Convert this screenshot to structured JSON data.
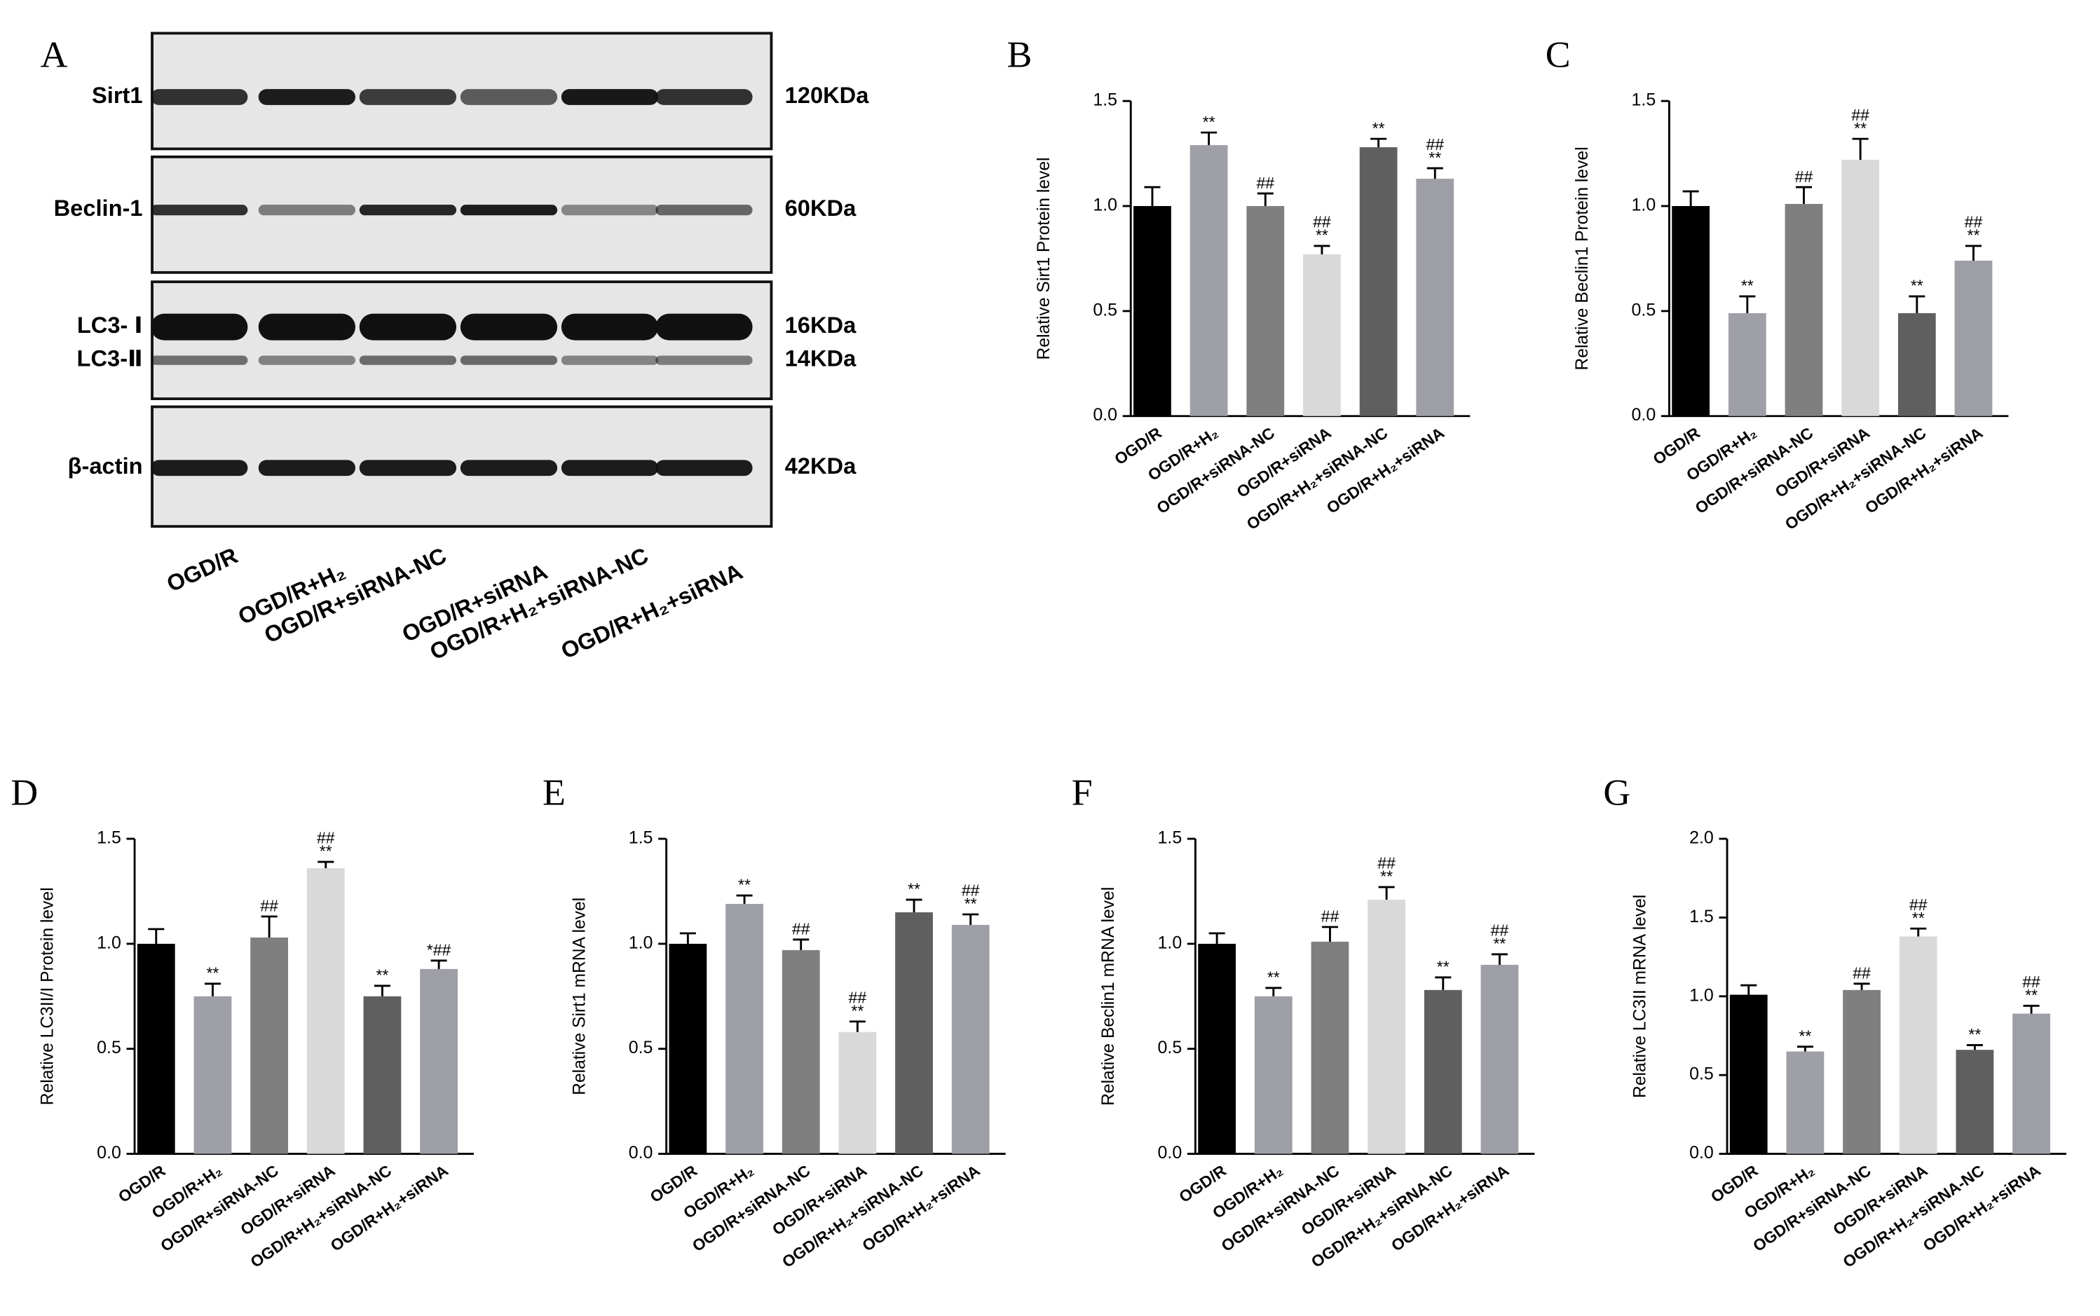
{
  "blot": {
    "label": "A",
    "rows": [
      {
        "names": [
          "Sirt1"
        ],
        "markers": [
          "120KDa"
        ]
      },
      {
        "names": [
          "Beclin-1"
        ],
        "markers": [
          "60KDa"
        ]
      },
      {
        "names": [
          "LC3- Ⅰ",
          "LC3-Ⅱ"
        ],
        "markers": [
          "16KDa",
          "14KDa"
        ]
      },
      {
        "names": [
          "β-actin"
        ],
        "markers": [
          "42KDa"
        ]
      }
    ],
    "lanes": [
      "OGD/R",
      "OGD/R+H₂",
      "OGD/R+siRNA-NC",
      "OGD/R+siRNA",
      "OGD/R+H₂+siRNA-NC",
      "OGD/R+H₂+siRNA"
    ]
  },
  "chart_data": [
    {
      "type": "bar",
      "panel": "B",
      "ylabel": "Relative Sirt1 Protein level",
      "categories": [
        "OGD/R",
        "OGD/R+H₂",
        "OGD/R+siRNA-NC",
        "OGD/R+siRNA",
        "OGD/R+H₂+siRNA-NC",
        "OGD/R+H₂+siRNA"
      ],
      "values": [
        1.0,
        1.29,
        1.0,
        0.77,
        1.28,
        1.13
      ],
      "errors": [
        0.09,
        0.06,
        0.06,
        0.04,
        0.04,
        0.05
      ],
      "annotations": [
        [],
        [
          "**"
        ],
        [
          "##"
        ],
        [
          "##",
          "**"
        ],
        [
          "**"
        ],
        [
          "##",
          "**"
        ]
      ],
      "colors": [
        "#000000",
        "#9f9fa7",
        "#7f7f7f",
        "#d9d9d9",
        "#5f5f5f",
        "#9e9ea6"
      ],
      "ylim": [
        0,
        1.5
      ],
      "yticks": [
        {
          "value": 0,
          "label": "0.0"
        },
        0.5,
        {
          "value": 1,
          "label": "1.0"
        },
        1.5
      ]
    },
    {
      "type": "bar",
      "panel": "C",
      "ylabel": "Relative Beclin1 Protein level",
      "categories": [
        "OGD/R",
        "OGD/R+H₂",
        "OGD/R+siRNA-NC",
        "OGD/R+siRNA",
        "OGD/R+H₂+siRNA-NC",
        "OGD/R+H₂+siRNA"
      ],
      "values": [
        1.0,
        0.49,
        1.01,
        1.22,
        0.49,
        0.74
      ],
      "errors": [
        0.07,
        0.08,
        0.08,
        0.1,
        0.08,
        0.07
      ],
      "annotations": [
        [],
        [
          "**"
        ],
        [
          "##"
        ],
        [
          "##",
          "**"
        ],
        [
          "**"
        ],
        [
          "##",
          "**"
        ]
      ],
      "colors": [
        "#000000",
        "#9f9fa7",
        "#7f7f7f",
        "#d9d9d9",
        "#5f5f5f",
        "#9e9ea6"
      ],
      "ylim": [
        0,
        1.5
      ],
      "yticks": [
        {
          "value": 0,
          "label": "0.0"
        },
        0.5,
        {
          "value": 1,
          "label": "1.0"
        },
        1.5
      ]
    },
    {
      "type": "bar",
      "panel": "D",
      "ylabel": "Relative LC3II/I Protein level",
      "categories": [
        "OGD/R",
        "OGD/R+H₂",
        "OGD/R+siRNA-NC",
        "OGD/R+siRNA",
        "OGD/R+H₂+siRNA-NC",
        "OGD/R+H₂+siRNA"
      ],
      "values": [
        1.0,
        0.75,
        1.03,
        1.36,
        0.75,
        0.88
      ],
      "errors": [
        0.07,
        0.06,
        0.1,
        0.03,
        0.05,
        0.04
      ],
      "annotations": [
        [],
        [
          "**"
        ],
        [
          "##"
        ],
        [
          "##",
          "**"
        ],
        [
          "**"
        ],
        [
          "*##"
        ]
      ],
      "colors": [
        "#000000",
        "#9f9fa7",
        "#7f7f7f",
        "#d9d9d9",
        "#5f5f5f",
        "#9e9ea6"
      ],
      "ylim": [
        0,
        1.5
      ],
      "yticks": [
        {
          "value": 0,
          "label": "0.0"
        },
        0.5,
        {
          "value": 1,
          "label": "1.0"
        },
        1.5
      ]
    },
    {
      "type": "bar",
      "panel": "E",
      "ylabel": "Relative Sirt1 mRNA level",
      "categories": [
        "OGD/R",
        "OGD/R+H₂",
        "OGD/R+siRNA-NC",
        "OGD/R+siRNA",
        "OGD/R+H₂+siRNA-NC",
        "OGD/R+H₂+siRNA"
      ],
      "values": [
        1.0,
        1.19,
        0.97,
        0.58,
        1.15,
        1.09
      ],
      "errors": [
        0.05,
        0.04,
        0.05,
        0.05,
        0.06,
        0.05
      ],
      "annotations": [
        [],
        [
          "**"
        ],
        [
          "##"
        ],
        [
          "##",
          "**"
        ],
        [
          "**"
        ],
        [
          "##",
          "**"
        ]
      ],
      "colors": [
        "#000000",
        "#9f9fa7",
        "#7f7f7f",
        "#d9d9d9",
        "#5f5f5f",
        "#9e9ea6"
      ],
      "ylim": [
        0,
        1.5
      ],
      "yticks": [
        {
          "value": 0,
          "label": "0.0"
        },
        0.5,
        {
          "value": 1,
          "label": "1.0"
        },
        1.5
      ]
    },
    {
      "type": "bar",
      "panel": "F",
      "ylabel": "Relative Beclin1 mRNA level",
      "categories": [
        "OGD/R",
        "OGD/R+H₂",
        "OGD/R+siRNA-NC",
        "OGD/R+siRNA",
        "OGD/R+H₂+siRNA-NC",
        "OGD/R+H₂+siRNA"
      ],
      "values": [
        1.0,
        0.75,
        1.01,
        1.21,
        0.78,
        0.9
      ],
      "errors": [
        0.05,
        0.04,
        0.07,
        0.06,
        0.06,
        0.05
      ],
      "annotations": [
        [],
        [
          "**"
        ],
        [
          "##"
        ],
        [
          "##",
          "**"
        ],
        [
          "**"
        ],
        [
          "##",
          "**"
        ]
      ],
      "colors": [
        "#000000",
        "#9f9fa7",
        "#7f7f7f",
        "#d9d9d9",
        "#5f5f5f",
        "#9e9ea6"
      ],
      "ylim": [
        0,
        1.5
      ],
      "yticks": [
        {
          "value": 0,
          "label": "0.0"
        },
        0.5,
        {
          "value": 1,
          "label": "1.0"
        },
        1.5
      ]
    },
    {
      "type": "bar",
      "panel": "G",
      "ylabel": "Relative LC3II mRNA level",
      "categories": [
        "OGD/R",
        "OGD/R+H₂",
        "OGD/R+siRNA-NC",
        "OGD/R+siRNA",
        "OGD/R+H₂+siRNA-NC",
        "OGD/R+H₂+siRNA"
      ],
      "values": [
        1.01,
        0.65,
        1.04,
        1.38,
        0.66,
        0.89
      ],
      "errors": [
        0.06,
        0.03,
        0.04,
        0.05,
        0.03,
        0.05
      ],
      "annotations": [
        [],
        [
          "**"
        ],
        [
          "##"
        ],
        [
          "##",
          "**"
        ],
        [
          "**"
        ],
        [
          "##",
          "**"
        ]
      ],
      "colors": [
        "#000000",
        "#9f9fa7",
        "#7f7f7f",
        "#d9d9d9",
        "#5f5f5f",
        "#9e9ea6"
      ],
      "ylim": [
        0,
        2
      ],
      "yticks": [
        {
          "value": 0,
          "label": "0.0"
        },
        0.5,
        {
          "value": 1,
          "label": "1.0"
        },
        1.5,
        {
          "value": 2,
          "label": "2.0"
        }
      ]
    }
  ]
}
